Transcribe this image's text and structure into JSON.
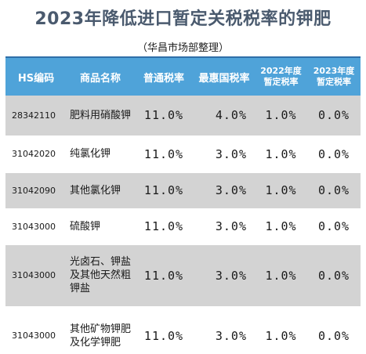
{
  "title": "2023年降低进口暂定关税税率的钾肥",
  "source": "（华昌市场部整理）",
  "columns": {
    "hs_code": "HS编码",
    "product_name": "商品名称",
    "general_rate": "普通税率",
    "mfn_rate": "最惠国税率",
    "provisional_2022_line1": "2022年度",
    "provisional_2022_line2": "暂定税率",
    "provisional_2023_line1": "2023年度",
    "provisional_2023_line2": "暂定税率"
  },
  "rows": [
    {
      "hs_code": "28342110",
      "name": "肥料用硝酸钾",
      "general": "11.0%",
      "mfn": "4.0%",
      "rate_2022": "1.0%",
      "rate_2023": "0.0%"
    },
    {
      "hs_code": "31042020",
      "name": "纯氯化钾",
      "general": "11.0%",
      "mfn": "3.0%",
      "rate_2022": "1.0%",
      "rate_2023": "0.0%"
    },
    {
      "hs_code": "31042090",
      "name": "其他氯化钾",
      "general": "11.0%",
      "mfn": "3.0%",
      "rate_2022": "1.0%",
      "rate_2023": "0.0%"
    },
    {
      "hs_code": "31043000",
      "name": "硫酸钾",
      "general": "11.0%",
      "mfn": "3.0%",
      "rate_2022": "1.0%",
      "rate_2023": "0.0%"
    },
    {
      "hs_code": "31043000",
      "name": "光卤石、钾盐及其他天然粗钾盐",
      "general": "11.0%",
      "mfn": "3.0%",
      "rate_2022": "1.0%",
      "rate_2023": "0.0%"
    },
    {
      "hs_code": "31043000",
      "name": "其他矿物钾肥及化学钾肥",
      "general": "11.0%",
      "mfn": "3.0%",
      "rate_2022": "1.0%",
      "rate_2023": "0.0%"
    }
  ],
  "colors": {
    "header_bg": "#4fa3d9",
    "title_color": "#4a5a6e",
    "stripe": "#d3d3d3"
  }
}
